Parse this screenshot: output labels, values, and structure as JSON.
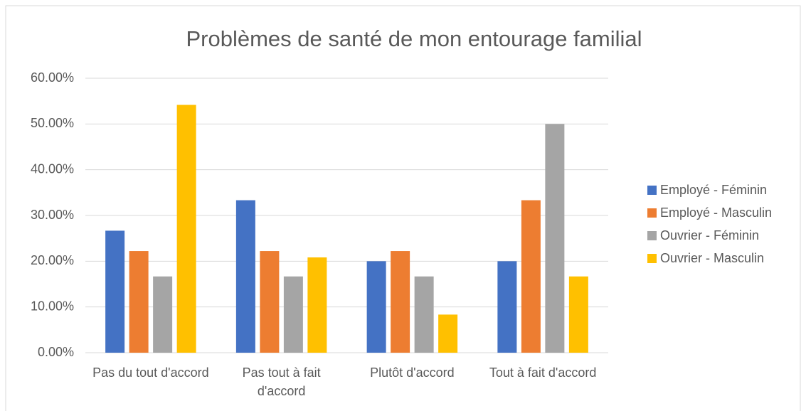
{
  "chart_data": {
    "type": "bar",
    "title": "Problèmes de santé de mon entourage familial",
    "categories": [
      "Pas du tout d'accord",
      "Pas tout à fait d'accord",
      "Plutôt d'accord",
      "Tout à fait d'accord"
    ],
    "series": [
      {
        "name": "Employé - Féminin",
        "color": "#4472c4",
        "values": [
          26.67,
          33.33,
          20,
          20
        ]
      },
      {
        "name": "Employé - Masculin",
        "color": "#ed7d31",
        "values": [
          22.22,
          22.22,
          22.22,
          33.33
        ]
      },
      {
        "name": "Ouvrier - Féminin",
        "color": "#a5a5a5",
        "values": [
          16.67,
          16.67,
          16.67,
          50
        ]
      },
      {
        "name": "Ouvrier - Masculin",
        "color": "#ffc000",
        "values": [
          54.17,
          20.83,
          8.33,
          16.67
        ]
      }
    ],
    "ylim": [
      0,
      60
    ],
    "yticks": [
      {
        "value": 0,
        "label": "0.00%"
      },
      {
        "value": 10,
        "label": "10.00%"
      },
      {
        "value": 20,
        "label": "20.00%"
      },
      {
        "value": 30,
        "label": "30.00%"
      },
      {
        "value": 40,
        "label": "40.00%"
      },
      {
        "value": 50,
        "label": "50.00%"
      },
      {
        "value": 60,
        "label": "60.00%"
      }
    ],
    "grid": true,
    "legend": "right"
  }
}
